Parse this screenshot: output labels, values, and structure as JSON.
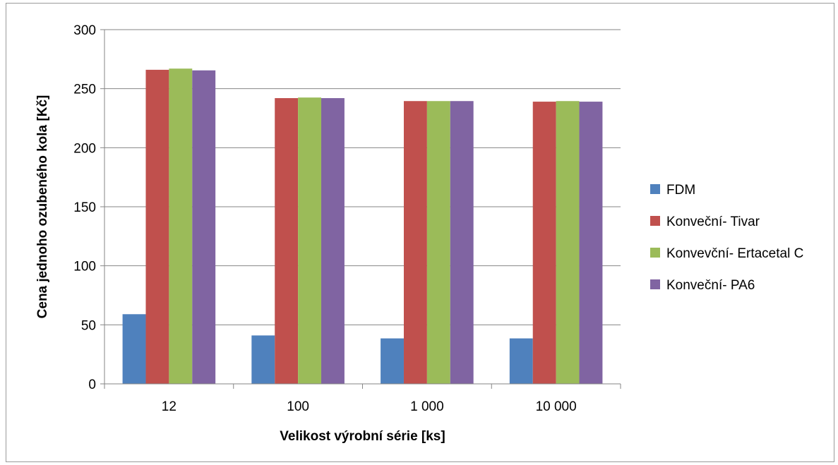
{
  "chart_data": {
    "type": "bar",
    "categories": [
      "12",
      "100",
      "1 000",
      "10 000"
    ],
    "series": [
      {
        "name": "FDM",
        "color": "#4f81bd",
        "values": [
          59,
          41,
          38.5,
          38.5
        ]
      },
      {
        "name": "Konveční- Tivar",
        "color": "#c0504d",
        "values": [
          266,
          242,
          239.5,
          239
        ]
      },
      {
        "name": "Konvevční- Ertacetal C",
        "color": "#9bbb59",
        "values": [
          267,
          242.5,
          239.5,
          239.5
        ]
      },
      {
        "name": "Konveční- PA6",
        "color": "#8064a2",
        "values": [
          265.5,
          242,
          239.5,
          239
        ]
      }
    ],
    "xlabel": "Velikost výrobní série [ks]",
    "ylabel": "Cena jednoho ozubeného kola [Kč]",
    "ylim": [
      0,
      300
    ],
    "yticks": [
      "0",
      "50",
      "100",
      "150",
      "200",
      "250",
      "300"
    ],
    "grid": true,
    "legend_position": "right"
  }
}
